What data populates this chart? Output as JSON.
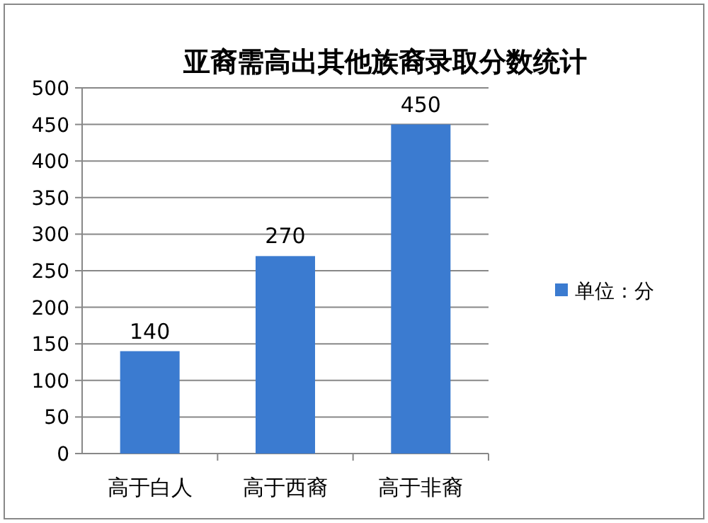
{
  "chart_data": {
    "type": "bar",
    "title": "亚裔需高出其他族裔录取分数统计",
    "categories": [
      "高于白人",
      "高于西裔",
      "高于非裔"
    ],
    "series": [
      {
        "name": "单位：分",
        "color": "#3b7bd0",
        "values": [
          140,
          270,
          450
        ]
      }
    ],
    "ylim": [
      0,
      500
    ],
    "yticks": [
      0,
      50,
      100,
      150,
      200,
      250,
      300,
      350,
      400,
      450,
      500
    ],
    "grid": "y",
    "legend": "right",
    "data_labels": true
  }
}
